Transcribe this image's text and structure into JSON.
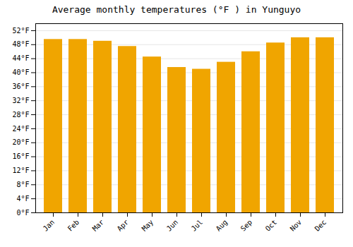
{
  "chart_data": {
    "type": "bar",
    "title": "Average monthly temperatures (°F ) in Yunguyo",
    "categories": [
      "Jan",
      "Feb",
      "Mar",
      "Apr",
      "May",
      "Jun",
      "Jul",
      "Aug",
      "Sep",
      "Oct",
      "Nov",
      "Dec"
    ],
    "values": [
      49.5,
      49.5,
      49.0,
      47.5,
      44.5,
      41.5,
      41.0,
      43.0,
      46.0,
      48.5,
      50.0,
      50.0
    ],
    "color": "#F0A500",
    "ylim": [
      0,
      54
    ],
    "yticks": [
      {
        "value": 0,
        "label": "0°F"
      },
      {
        "value": 4,
        "label": "4°F"
      },
      {
        "value": 8,
        "label": "8°F"
      },
      {
        "value": 12,
        "label": "12°F"
      },
      {
        "value": 16,
        "label": "16°F"
      },
      {
        "value": 20,
        "label": "20°F"
      },
      {
        "value": 24,
        "label": "24°F"
      },
      {
        "value": 28,
        "label": "28°F"
      },
      {
        "value": 32,
        "label": "32°F"
      },
      {
        "value": 36,
        "label": "36°F"
      },
      {
        "value": 40,
        "label": "40°F"
      },
      {
        "value": 44,
        "label": "44°F"
      },
      {
        "value": 48,
        "label": "48°F"
      },
      {
        "value": 52,
        "label": "52°F"
      }
    ],
    "grid": true
  }
}
